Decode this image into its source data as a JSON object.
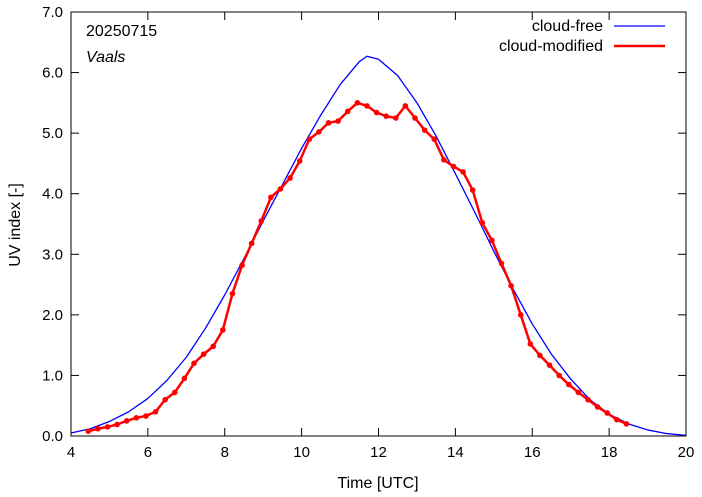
{
  "chart_data": {
    "type": "line",
    "date_label": "20250715",
    "location_label": "Vaals",
    "xlabel": "Time  [UTC]",
    "ylabel": "UV index  [-]",
    "xlim": [
      4,
      20
    ],
    "ylim": [
      0,
      7
    ],
    "x_ticks": [
      4,
      6,
      8,
      10,
      12,
      14,
      16,
      18,
      20
    ],
    "x_tick_labels": [
      "4",
      "6",
      "8",
      "10",
      "12",
      "14",
      "16",
      "18",
      "20"
    ],
    "y_ticks": [
      0,
      1,
      2,
      3,
      4,
      5,
      6,
      7
    ],
    "y_tick_labels": [
      "0.0",
      "1.0",
      "2.0",
      "3.0",
      "4.0",
      "5.0",
      "6.0",
      "7.0"
    ],
    "grid": false,
    "legend_position": "top-right",
    "series": [
      {
        "name": "cloud-free",
        "color": "#0000ff",
        "marker": "none",
        "x": [
          4.0,
          4.5,
          5.0,
          5.5,
          6.0,
          6.5,
          7.0,
          7.5,
          8.0,
          8.5,
          9.0,
          9.5,
          10.0,
          10.5,
          11.0,
          11.5,
          11.7,
          12.0,
          12.5,
          13.0,
          13.5,
          14.0,
          14.5,
          15.0,
          15.5,
          16.0,
          16.5,
          17.0,
          17.5,
          18.0,
          18.5,
          19.0,
          19.5,
          20.0
        ],
        "values": [
          0.05,
          0.12,
          0.24,
          0.4,
          0.62,
          0.92,
          1.3,
          1.78,
          2.33,
          2.93,
          3.55,
          4.15,
          4.75,
          5.3,
          5.8,
          6.18,
          6.27,
          6.22,
          5.95,
          5.5,
          4.95,
          4.33,
          3.7,
          3.05,
          2.43,
          1.85,
          1.35,
          0.94,
          0.6,
          0.36,
          0.2,
          0.1,
          0.04,
          0.01
        ]
      },
      {
        "name": "cloud-modified",
        "color": "#ff0000",
        "marker": "circle",
        "x": [
          4.45,
          4.7,
          4.95,
          5.2,
          5.45,
          5.7,
          5.95,
          6.2,
          6.45,
          6.7,
          6.95,
          7.2,
          7.45,
          7.7,
          7.95,
          8.2,
          8.45,
          8.7,
          8.95,
          9.2,
          9.45,
          9.7,
          9.95,
          10.2,
          10.45,
          10.7,
          10.95,
          11.2,
          11.45,
          11.7,
          11.95,
          12.2,
          12.45,
          12.7,
          12.95,
          13.2,
          13.45,
          13.7,
          13.95,
          14.2,
          14.45,
          14.7,
          14.95,
          15.2,
          15.45,
          15.7,
          15.95,
          16.2,
          16.45,
          16.7,
          16.95,
          17.2,
          17.45,
          17.7,
          17.95,
          18.2,
          18.45
        ],
        "values": [
          0.08,
          0.12,
          0.15,
          0.19,
          0.25,
          0.3,
          0.33,
          0.4,
          0.6,
          0.72,
          0.95,
          1.2,
          1.35,
          1.48,
          1.75,
          2.35,
          2.82,
          3.18,
          3.55,
          3.94,
          4.08,
          4.26,
          4.54,
          4.9,
          5.02,
          5.17,
          5.2,
          5.36,
          5.5,
          5.45,
          5.34,
          5.28,
          5.25,
          5.45,
          5.25,
          5.05,
          4.9,
          4.56,
          4.45,
          4.36,
          4.06,
          3.52,
          3.23,
          2.85,
          2.48,
          2.0,
          1.52,
          1.33,
          1.17,
          1.0,
          0.85,
          0.72,
          0.6,
          0.48,
          0.38,
          0.27,
          0.2
        ]
      }
    ]
  }
}
